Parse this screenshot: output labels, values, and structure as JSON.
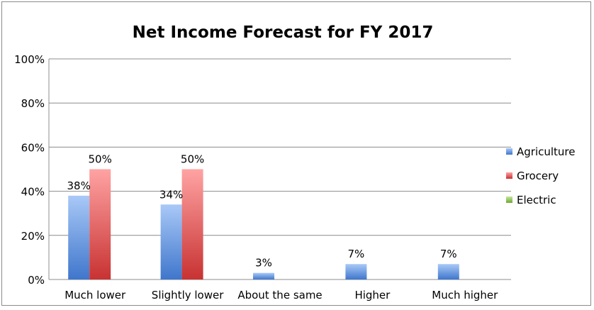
{
  "chart_data": {
    "type": "bar",
    "title": "Net Income Forecast for FY 2017",
    "xlabel": "",
    "ylabel": "",
    "ylim": [
      0,
      100
    ],
    "y_ticks": [
      "0%",
      "20%",
      "40%",
      "60%",
      "80%",
      "100%"
    ],
    "y_tick_values": [
      0,
      20,
      40,
      60,
      80,
      100
    ],
    "grid": true,
    "legend": "right",
    "categories": [
      "Much lower",
      "Slightly lower",
      "About the same",
      "Higher",
      "Much higher"
    ],
    "series": [
      {
        "name": "Agriculture",
        "color": "#4a7fd4",
        "values": [
          38,
          34,
          3,
          7,
          7
        ],
        "labels": [
          "38%",
          "34%",
          "3%",
          "7%",
          "7%"
        ]
      },
      {
        "name": "Grocery",
        "color": "#d94040",
        "values": [
          50,
          50,
          null,
          null,
          null
        ],
        "labels": [
          "50%",
          "50%",
          "",
          "",
          ""
        ]
      },
      {
        "name": "Electric",
        "color": "#8bc34a",
        "values": [
          null,
          null,
          null,
          null,
          null
        ],
        "labels": [
          "",
          "",
          "",
          "",
          ""
        ]
      }
    ]
  }
}
